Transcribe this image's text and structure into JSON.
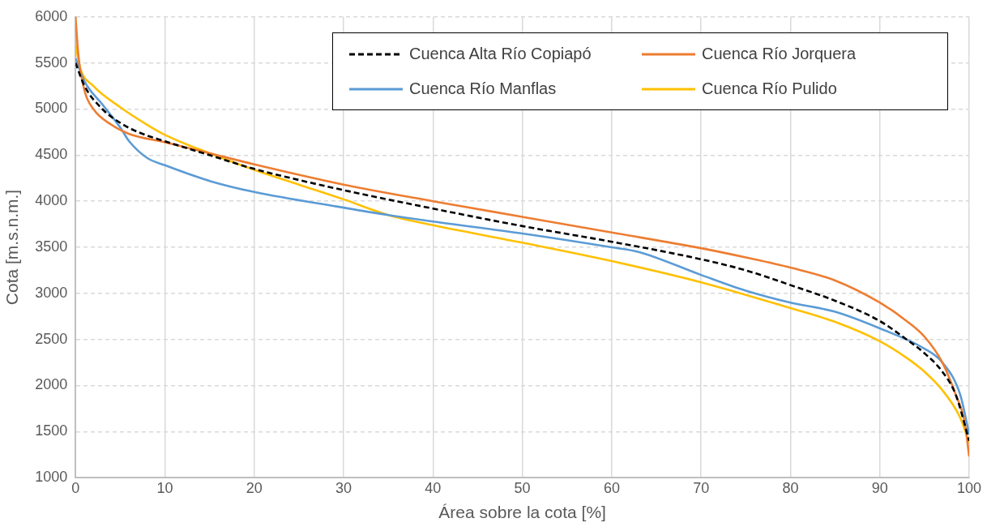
{
  "chart_data": {
    "type": "line",
    "xlabel": "Área sobre la cota [%]",
    "ylabel": "Cota [m.s.n.m.]",
    "xlim": [
      0,
      100
    ],
    "xticks": [
      0,
      10,
      20,
      30,
      40,
      50,
      60,
      70,
      80,
      90,
      100
    ],
    "ylim": [
      1000,
      6000
    ],
    "yticks": [
      1000,
      1500,
      2000,
      2500,
      3000,
      3500,
      4000,
      4500,
      5000,
      5500,
      6000
    ],
    "grid": true,
    "legend": "top right",
    "marker": "none",
    "series": [
      {
        "name": "Cuenca Alta Río Copiapó",
        "color": "#000000",
        "line_style": "dashed",
        "x": [
          0,
          1,
          3,
          5,
          7,
          10,
          15,
          20,
          25,
          30,
          40,
          50,
          60,
          70,
          75,
          80,
          85,
          90,
          93,
          95,
          97,
          98.5,
          100
        ],
        "values": [
          5500,
          5250,
          5000,
          4850,
          4750,
          4650,
          4500,
          4350,
          4230,
          4120,
          3920,
          3730,
          3560,
          3370,
          3250,
          3090,
          2920,
          2700,
          2500,
          2350,
          2150,
          1900,
          1400
        ]
      },
      {
        "name": "Cuenca Río Jorquera",
        "color": "#ed7d31",
        "line_style": "solid",
        "x": [
          0,
          0.3,
          1,
          2,
          4,
          6,
          10,
          15,
          20,
          30,
          40,
          50,
          60,
          70,
          75,
          80,
          85,
          90,
          93,
          95,
          97,
          98.5,
          99.5,
          100
        ],
        "values": [
          6000,
          5600,
          5200,
          5000,
          4830,
          4730,
          4640,
          4520,
          4400,
          4180,
          4000,
          3830,
          3660,
          3490,
          3390,
          3280,
          3140,
          2900,
          2700,
          2530,
          2250,
          1900,
          1600,
          1230
        ]
      },
      {
        "name": "Cuenca Río Manflas",
        "color": "#5b9bd5",
        "line_style": "solid",
        "x": [
          0,
          1,
          3,
          5,
          6,
          8,
          10,
          15,
          20,
          30,
          35,
          40,
          50,
          60,
          63,
          70,
          75,
          80,
          85,
          90,
          95,
          97,
          99,
          100
        ],
        "values": [
          5550,
          5300,
          5050,
          4800,
          4650,
          4470,
          4390,
          4220,
          4100,
          3930,
          3850,
          3780,
          3650,
          3500,
          3450,
          3200,
          3030,
          2900,
          2800,
          2620,
          2400,
          2250,
          1900,
          1470
        ]
      },
      {
        "name": "Cuenca Río Pulido",
        "color": "#ffc000",
        "line_style": "solid",
        "x": [
          0,
          0.5,
          2,
          5,
          8,
          10,
          15,
          20,
          25,
          30,
          35,
          40,
          50,
          60,
          70,
          80,
          85,
          90,
          93,
          95,
          97,
          99,
          100
        ],
        "values": [
          5700,
          5450,
          5250,
          5020,
          4830,
          4720,
          4520,
          4340,
          4180,
          4020,
          3850,
          3740,
          3550,
          3350,
          3120,
          2840,
          2690,
          2480,
          2300,
          2150,
          1950,
          1650,
          1380
        ]
      }
    ]
  }
}
